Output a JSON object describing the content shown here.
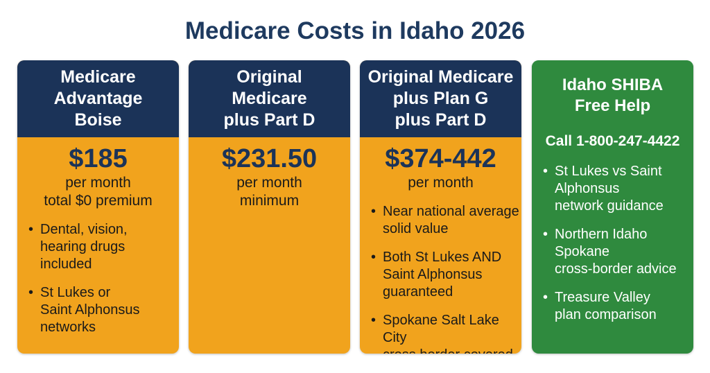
{
  "title": "Medicare Costs in Idaho 2026",
  "cards": [
    {
      "header": [
        "Medicare",
        "Advantage",
        "Boise"
      ],
      "price": "$185",
      "details": [
        "per month",
        "total $0 premium"
      ],
      "bullets": [
        [
          "Dental, vision,",
          "hearing drugs",
          "included"
        ],
        [
          "St Lukes or",
          "Saint Alphonsus",
          "networks"
        ]
      ]
    },
    {
      "header": [
        "Original",
        "Medicare",
        "plus Part D"
      ],
      "price": "$231.50",
      "details": [
        "per month",
        "minimum"
      ]
    },
    {
      "header": [
        "Original Medicare",
        "plus Plan G",
        "plus Part D"
      ],
      "price": "$374-442",
      "details": [
        "per month"
      ],
      "bullets": [
        [
          "Near national average",
          "solid value"
        ],
        [
          "Both St Lukes AND",
          "Saint Alphonsus",
          "guaranteed"
        ],
        [
          "Spokane Salt Lake City",
          "cross border covered"
        ]
      ]
    },
    {
      "header": [
        "Idaho SHIBA",
        "Free Help"
      ],
      "call": "Call 1-800-247-4422",
      "bullets": [
        [
          "St Lukes vs Saint",
          "Alphonsus",
          "network guidance"
        ],
        [
          "Northern Idaho",
          "Spokane",
          "cross-border advice"
        ],
        [
          "Treasure Valley",
          "plan comparison"
        ]
      ]
    }
  ]
}
